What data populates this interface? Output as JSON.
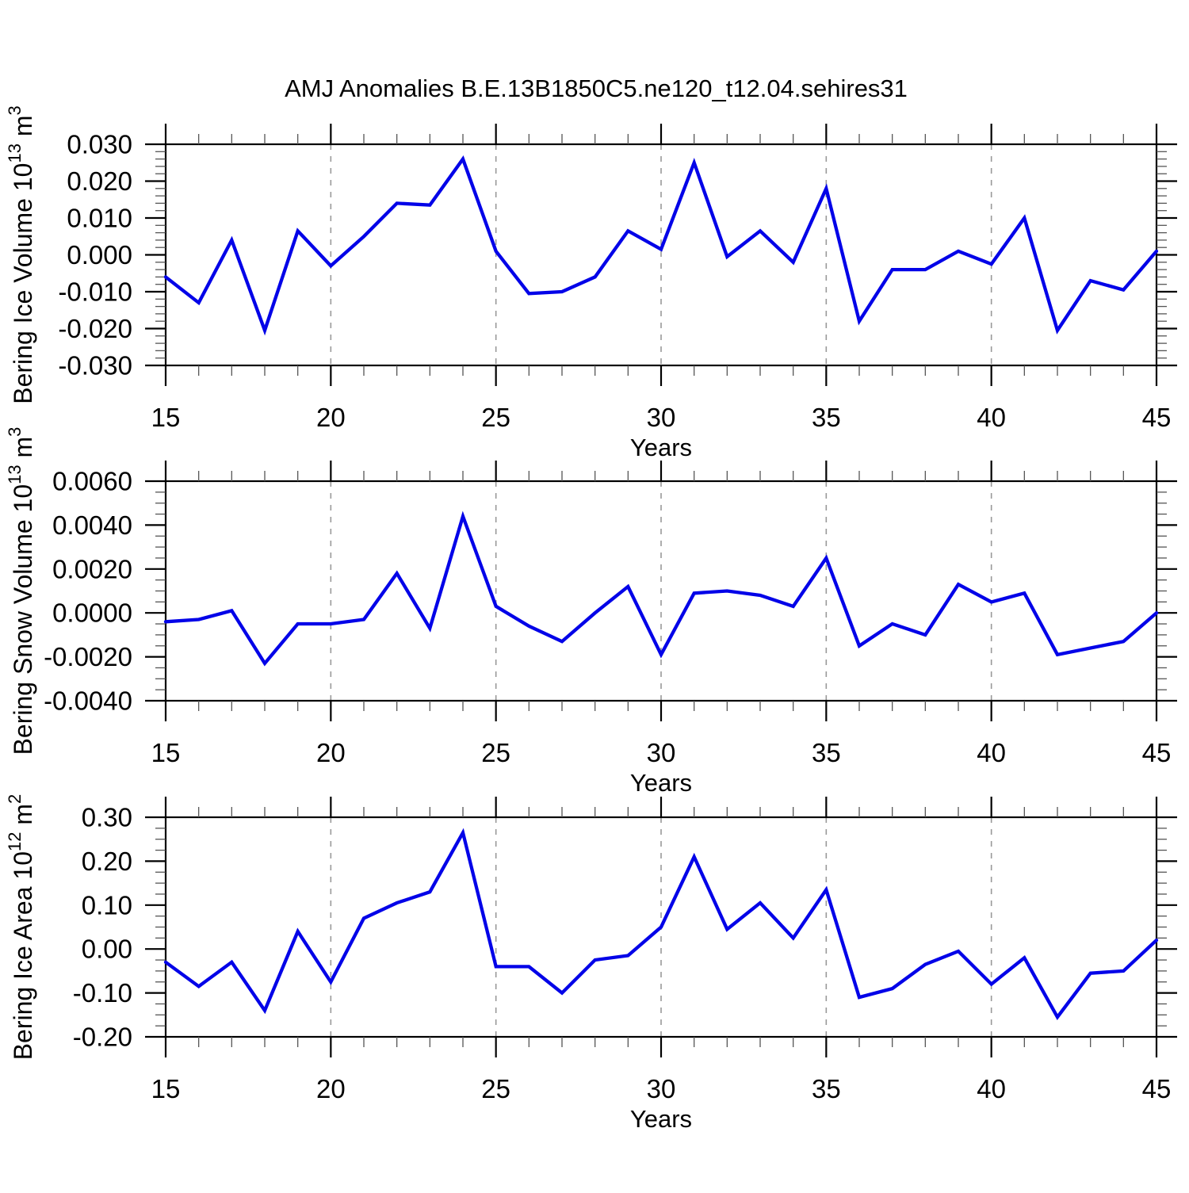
{
  "title": "AMJ Anomalies B.E.13B1850C5.ne120_t12.04.sehires31",
  "style": {
    "line_color": "#0303e8",
    "axis_color": "#000000",
    "minor_tick_color": "#555555",
    "grid_color": "#999999",
    "background": "#ffffff"
  },
  "x_axis": {
    "label": "Years",
    "min": 15,
    "max": 45,
    "major_ticks": [
      15,
      20,
      25,
      30,
      35,
      40,
      45
    ],
    "minor_step": 1,
    "grid_years": [
      20,
      25,
      30,
      35,
      40
    ]
  },
  "chart_data": [
    {
      "type": "line",
      "ylabel_text": "Bering Ice Volume 10^13 m^3",
      "ylabel_parts": [
        {
          "t": "Bering Ice Volume 10"
        },
        {
          "t": "13",
          "sup": true
        },
        {
          "t": " m"
        },
        {
          "t": "3",
          "sup": true
        }
      ],
      "ymin": -0.03,
      "ymax": 0.03,
      "ytick_step": 0.01,
      "yminor_step": 0.002,
      "ytick_decimals": 3,
      "x": [
        15,
        16,
        17,
        18,
        19,
        20,
        21,
        22,
        23,
        24,
        25,
        26,
        27,
        28,
        29,
        30,
        31,
        32,
        33,
        34,
        35,
        36,
        37,
        38,
        39,
        40,
        41,
        42,
        43,
        44,
        45
      ],
      "values": [
        -0.006,
        -0.013,
        0.004,
        -0.0205,
        0.0065,
        -0.003,
        0.005,
        0.014,
        0.0135,
        0.026,
        0.001,
        -0.0105,
        -0.01,
        -0.006,
        0.0065,
        0.0015,
        0.025,
        -0.0005,
        0.0065,
        -0.002,
        0.018,
        -0.018,
        -0.004,
        -0.004,
        0.001,
        -0.0025,
        0.01,
        -0.0205,
        -0.007,
        -0.0095,
        0.001
      ]
    },
    {
      "type": "line",
      "ylabel_text": "Bering Snow Volume 10^13 m^3",
      "ylabel_parts": [
        {
          "t": "Bering Snow Volume 10"
        },
        {
          "t": "13",
          "sup": true
        },
        {
          "t": " m"
        },
        {
          "t": "3",
          "sup": true
        }
      ],
      "ymin": -0.004,
      "ymax": 0.006,
      "ytick_step": 0.002,
      "yminor_step": 0.0005,
      "ytick_decimals": 4,
      "x": [
        15,
        16,
        17,
        18,
        19,
        20,
        21,
        22,
        23,
        24,
        25,
        26,
        27,
        28,
        29,
        30,
        31,
        32,
        33,
        34,
        35,
        36,
        37,
        38,
        39,
        40,
        41,
        42,
        43,
        44,
        45
      ],
      "values": [
        -0.0004,
        -0.0003,
        0.0001,
        -0.0023,
        -0.0005,
        -0.0005,
        -0.0003,
        0.0018,
        -0.0007,
        0.0044,
        0.0003,
        -0.0006,
        -0.0013,
        0.0,
        0.0012,
        -0.0019,
        0.0009,
        0.001,
        0.0008,
        0.0003,
        0.0025,
        -0.0015,
        -0.0005,
        -0.001,
        0.0013,
        0.0005,
        0.0009,
        -0.0019,
        -0.0016,
        -0.0013,
        0.0
      ]
    },
    {
      "type": "line",
      "ylabel_text": "Bering Ice Area 10^12 m^2",
      "ylabel_parts": [
        {
          "t": "Bering Ice Area 10"
        },
        {
          "t": "12",
          "sup": true
        },
        {
          "t": " m"
        },
        {
          "t": "2",
          "sup": true
        }
      ],
      "ymin": -0.2,
      "ymax": 0.3,
      "ytick_step": 0.1,
      "yminor_step": 0.025,
      "ytick_decimals": 2,
      "x": [
        15,
        16,
        17,
        18,
        19,
        20,
        21,
        22,
        23,
        24,
        25,
        26,
        27,
        28,
        29,
        30,
        31,
        32,
        33,
        34,
        35,
        36,
        37,
        38,
        39,
        40,
        41,
        42,
        43,
        44,
        45
      ],
      "values": [
        -0.03,
        -0.085,
        -0.03,
        -0.14,
        0.04,
        -0.075,
        0.07,
        0.105,
        0.13,
        0.265,
        -0.04,
        -0.04,
        -0.1,
        -0.025,
        -0.015,
        0.05,
        0.21,
        0.045,
        0.105,
        0.025,
        0.135,
        -0.11,
        -0.09,
        -0.035,
        -0.005,
        -0.08,
        -0.02,
        -0.155,
        -0.055,
        -0.05,
        0.02
      ]
    }
  ]
}
